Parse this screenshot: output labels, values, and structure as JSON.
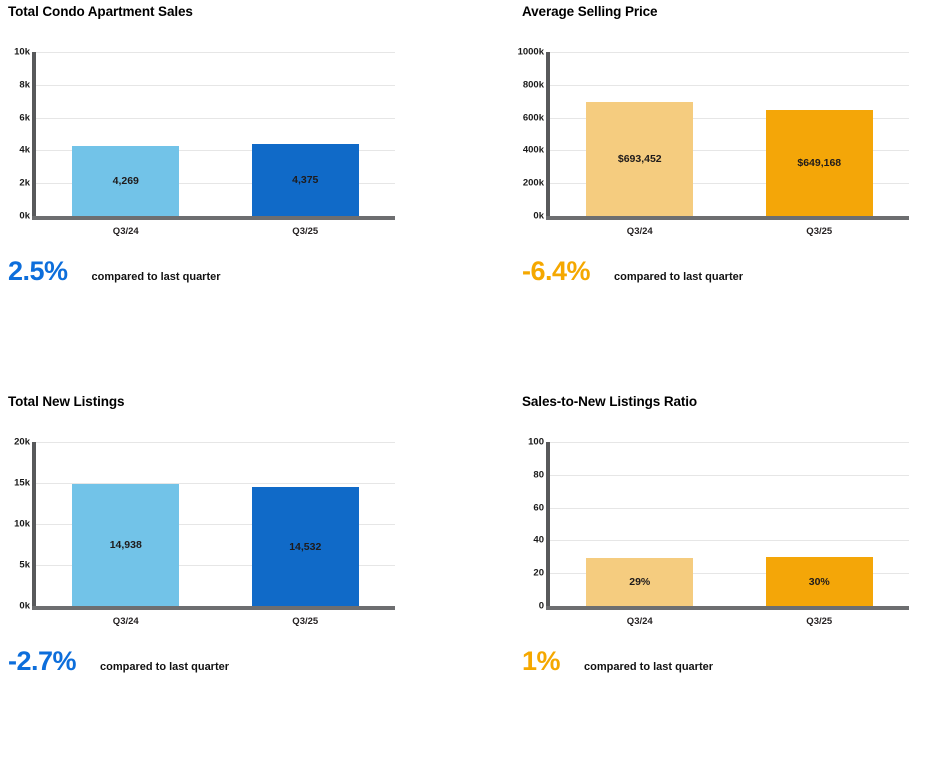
{
  "page": {
    "background": "#ffffff"
  },
  "colors": {
    "light_blue": "#72C3E8",
    "dark_blue": "#106AC8",
    "light_orange": "#F5CC7F",
    "dark_orange": "#F4A608",
    "stat_blue": "#0D6EDB",
    "stat_orange": "#F5A800",
    "axis": "#58595b",
    "gridline": "#e6e6e6"
  },
  "chart_data": [
    {
      "type": "bar",
      "title": "Total Condo Apartment Sales",
      "categories": [
        "Q3/24",
        "Q3/25"
      ],
      "values": [
        4269,
        4375
      ],
      "value_labels": [
        "4,269",
        "4,375"
      ],
      "ylim": [
        0,
        10000
      ],
      "yticks": [
        "10k",
        "8k",
        "6k",
        "4k",
        "2k",
        "0k"
      ],
      "bar_colors": [
        "#72C3E8",
        "#106AC8"
      ],
      "grid": true,
      "legend": "none",
      "stat": {
        "value": "2.5%",
        "color": "#0D6EDB",
        "note": "compared to last quarter"
      }
    },
    {
      "type": "bar",
      "title": "Average Selling Price",
      "categories": [
        "Q3/24",
        "Q3/25"
      ],
      "values": [
        693452,
        649168
      ],
      "value_labels": [
        "$693,452",
        "$649,168"
      ],
      "ylim": [
        0,
        1000000
      ],
      "yticks": [
        "1000k",
        "800k",
        "600k",
        "400k",
        "200k",
        "0k"
      ],
      "bar_colors": [
        "#F5CC7F",
        "#F4A608"
      ],
      "grid": true,
      "legend": "none",
      "stat": {
        "value": "-6.4%",
        "color": "#F5A800",
        "note": "compared to last quarter"
      }
    },
    {
      "type": "bar",
      "title": "Total New Listings",
      "categories": [
        "Q3/24",
        "Q3/25"
      ],
      "values": [
        14938,
        14532
      ],
      "value_labels": [
        "14,938",
        "14,532"
      ],
      "ylim": [
        0,
        20000
      ],
      "yticks": [
        "20k",
        "15k",
        "10k",
        "5k",
        "0k"
      ],
      "bar_colors": [
        "#72C3E8",
        "#106AC8"
      ],
      "grid": true,
      "legend": "none",
      "stat": {
        "value": "-2.7%",
        "color": "#0D6EDB",
        "note": "compared to last quarter"
      }
    },
    {
      "type": "bar",
      "title": "Sales-to-New Listings Ratio",
      "categories": [
        "Q3/24",
        "Q3/25"
      ],
      "values": [
        29,
        30
      ],
      "value_labels": [
        "29%",
        "30%"
      ],
      "ylim": [
        0,
        100
      ],
      "yticks": [
        "100",
        "80",
        "60",
        "40",
        "20",
        "0"
      ],
      "bar_colors": [
        "#F5CC7F",
        "#F4A608"
      ],
      "grid": true,
      "legend": "none",
      "stat": {
        "value": "1%",
        "color": "#F5A800",
        "note": "compared to last quarter"
      }
    }
  ]
}
